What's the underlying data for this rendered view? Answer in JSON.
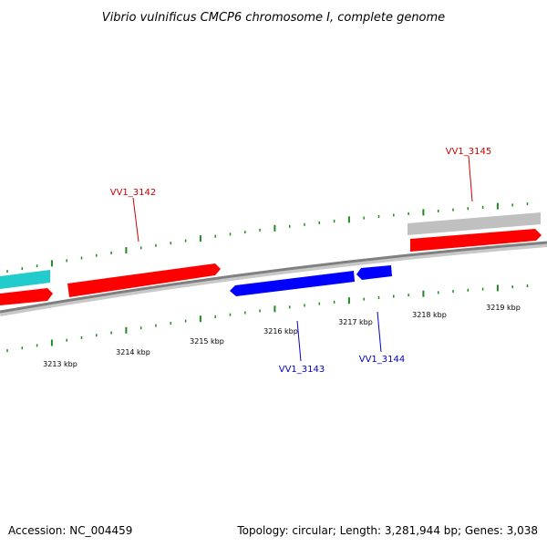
{
  "title": "Vibrio vulnificus CMCP6 chromosome I, complete genome",
  "footer": {
    "accession": "Accession: NC_004459",
    "summary": "Topology: circular; Length: 3,281,944 bp; Genes: 3,038"
  },
  "colors": {
    "forward_gene": "#ff0000",
    "reverse_gene": "#0000ff",
    "other_feature_cyan": "#22cccc",
    "other_feature_gray": "#c0c0c0",
    "backbone": "#808080",
    "ticks": "#228822",
    "forward_label": "#cc0000",
    "reverse_label": "#0000cc"
  },
  "scale": {
    "unit": "kbp",
    "labels": [
      "3213 kbp",
      "3214 kbp",
      "3215 kbp",
      "3216 kbp",
      "3217 kbp",
      "3218 kbp",
      "3219 kbp"
    ]
  },
  "genes": [
    {
      "name": "VV1_3142",
      "strand": "forward"
    },
    {
      "name": "VV1_3143",
      "strand": "reverse"
    },
    {
      "name": "VV1_3144",
      "strand": "reverse"
    },
    {
      "name": "VV1_3145",
      "strand": "forward"
    }
  ]
}
